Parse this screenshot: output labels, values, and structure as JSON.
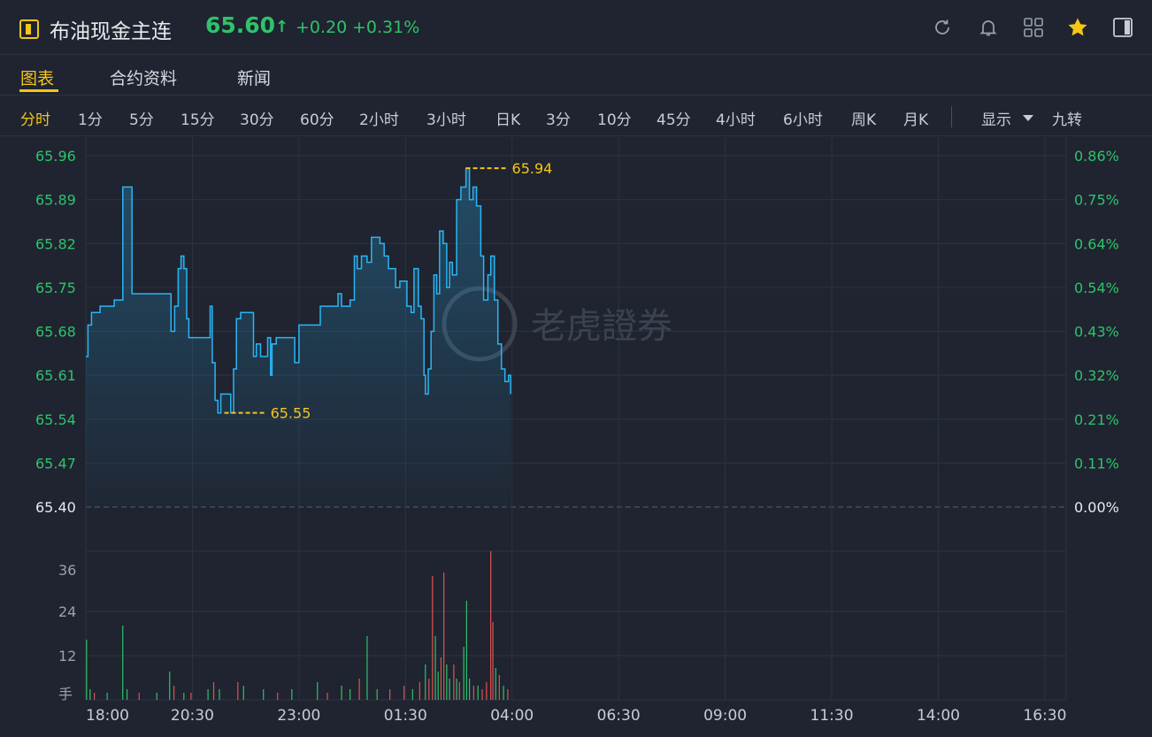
{
  "header": {
    "title": "布油现金主连",
    "price": "65.60",
    "arrow": "↑",
    "change": "+0.20",
    "change_pct": "+0.31%",
    "icons": [
      "refresh-icon",
      "bell-icon",
      "grid-icon",
      "star-icon",
      "sidebar-toggle-icon"
    ],
    "colors": {
      "up": "#2fc26b",
      "accent": "#f5c518",
      "line": "#29b6f6",
      "down": "#e05353"
    }
  },
  "tabs": [
    "图表",
    "合约资料",
    "新闻"
  ],
  "periods": [
    "分时",
    "1分",
    "5分",
    "15分",
    "30分",
    "60分",
    "2小时",
    "3小时",
    "日K",
    "3分",
    "10分",
    "45分",
    "4小时",
    "6小时",
    "周K",
    "月K"
  ],
  "display_menu": "显示",
  "rights_button": "九转",
  "watermark": "老虎證券",
  "chart_data": {
    "type": "line",
    "price_axis": [
      "65.96",
      "65.89",
      "65.82",
      "65.75",
      "65.68",
      "65.61",
      "65.54",
      "65.47",
      "65.40"
    ],
    "pct_axis": [
      "0.86%",
      "0.75%",
      "0.64%",
      "0.54%",
      "0.43%",
      "0.32%",
      "0.21%",
      "0.11%",
      "0.00%"
    ],
    "ylim": [
      65.4,
      65.96
    ],
    "base_price": 65.4,
    "x_ticks": [
      "18:00",
      "20:30",
      "23:00",
      "01:30",
      "04:00",
      "06:30",
      "09:00",
      "11:30",
      "14:00",
      "16:30"
    ],
    "x_minutes_range": [
      0,
      1380
    ],
    "high": {
      "label": "65.94",
      "value": 65.94,
      "minute": 535
    },
    "low": {
      "label": "65.55",
      "value": 65.55,
      "minute": 195
    },
    "price_points": [
      [
        0,
        65.64
      ],
      [
        3,
        65.69
      ],
      [
        8,
        65.71
      ],
      [
        20,
        65.72
      ],
      [
        40,
        65.73
      ],
      [
        50,
        65.73
      ],
      [
        52,
        65.91
      ],
      [
        62,
        65.91
      ],
      [
        65,
        65.74
      ],
      [
        75,
        65.74
      ],
      [
        100,
        65.74
      ],
      [
        118,
        65.74
      ],
      [
        120,
        65.68
      ],
      [
        125,
        65.72
      ],
      [
        130,
        65.78
      ],
      [
        134,
        65.8
      ],
      [
        138,
        65.78
      ],
      [
        142,
        65.7
      ],
      [
        145,
        65.67
      ],
      [
        170,
        65.67
      ],
      [
        175,
        65.72
      ],
      [
        178,
        65.63
      ],
      [
        182,
        65.57
      ],
      [
        186,
        65.55
      ],
      [
        190,
        65.58
      ],
      [
        196,
        65.58
      ],
      [
        204,
        65.55
      ],
      [
        208,
        65.62
      ],
      [
        212,
        65.7
      ],
      [
        218,
        65.71
      ],
      [
        232,
        65.71
      ],
      [
        236,
        65.64
      ],
      [
        240,
        65.66
      ],
      [
        246,
        65.64
      ],
      [
        252,
        65.64
      ],
      [
        256,
        65.67
      ],
      [
        260,
        65.61
      ],
      [
        262,
        65.66
      ],
      [
        268,
        65.67
      ],
      [
        290,
        65.67
      ],
      [
        294,
        65.63
      ],
      [
        300,
        65.69
      ],
      [
        320,
        65.69
      ],
      [
        330,
        65.72
      ],
      [
        350,
        65.72
      ],
      [
        355,
        65.74
      ],
      [
        360,
        65.72
      ],
      [
        372,
        65.73
      ],
      [
        378,
        65.8
      ],
      [
        382,
        65.78
      ],
      [
        388,
        65.8
      ],
      [
        396,
        65.79
      ],
      [
        402,
        65.83
      ],
      [
        414,
        65.82
      ],
      [
        420,
        65.8
      ],
      [
        426,
        65.78
      ],
      [
        430,
        65.78
      ],
      [
        436,
        65.75
      ],
      [
        442,
        65.76
      ],
      [
        452,
        65.72
      ],
      [
        458,
        65.71
      ],
      [
        462,
        65.78
      ],
      [
        468,
        65.72
      ],
      [
        472,
        65.7
      ],
      [
        476,
        65.61
      ],
      [
        478,
        65.58
      ],
      [
        482,
        65.62
      ],
      [
        486,
        65.68
      ],
      [
        490,
        65.77
      ],
      [
        494,
        65.74
      ],
      [
        498,
        65.84
      ],
      [
        503,
        65.82
      ],
      [
        508,
        65.75
      ],
      [
        512,
        65.79
      ],
      [
        516,
        65.77
      ],
      [
        522,
        65.89
      ],
      [
        528,
        65.91
      ],
      [
        535,
        65.94
      ],
      [
        540,
        65.89
      ],
      [
        545,
        65.91
      ],
      [
        550,
        65.88
      ],
      [
        556,
        65.8
      ],
      [
        560,
        65.73
      ],
      [
        566,
        65.77
      ],
      [
        570,
        65.8
      ],
      [
        575,
        65.73
      ],
      [
        580,
        65.66
      ],
      [
        585,
        65.62
      ],
      [
        590,
        65.6
      ],
      [
        595,
        65.61
      ],
      [
        598,
        65.58
      ]
    ],
    "volume_axis": [
      "36",
      "24",
      "12",
      "手"
    ],
    "volume_max": 42,
    "volume_bars": [
      [
        1,
        17,
        "up"
      ],
      [
        6,
        3,
        "up"
      ],
      [
        12,
        2,
        "down"
      ],
      [
        30,
        2,
        "up"
      ],
      [
        52,
        21,
        "up"
      ],
      [
        58,
        3,
        "up"
      ],
      [
        75,
        2,
        "down"
      ],
      [
        100,
        2,
        "up"
      ],
      [
        118,
        8,
        "up"
      ],
      [
        124,
        4,
        "down"
      ],
      [
        138,
        2,
        "up"
      ],
      [
        148,
        2,
        "down"
      ],
      [
        172,
        3,
        "up"
      ],
      [
        180,
        5,
        "down"
      ],
      [
        188,
        3,
        "up"
      ],
      [
        214,
        5,
        "down"
      ],
      [
        222,
        4,
        "up"
      ],
      [
        250,
        3,
        "up"
      ],
      [
        270,
        2,
        "down"
      ],
      [
        290,
        3,
        "up"
      ],
      [
        326,
        5,
        "up"
      ],
      [
        340,
        2,
        "down"
      ],
      [
        360,
        4,
        "up"
      ],
      [
        372,
        3,
        "up"
      ],
      [
        385,
        6,
        "down"
      ],
      [
        396,
        18,
        "up"
      ],
      [
        410,
        3,
        "up"
      ],
      [
        428,
        3,
        "down"
      ],
      [
        448,
        4,
        "down"
      ],
      [
        460,
        3,
        "up"
      ],
      [
        470,
        5,
        "down"
      ],
      [
        478,
        10,
        "up"
      ],
      [
        483,
        6,
        "down"
      ],
      [
        488,
        35,
        "down"
      ],
      [
        492,
        18,
        "up"
      ],
      [
        496,
        8,
        "up"
      ],
      [
        500,
        12,
        "down"
      ],
      [
        504,
        36,
        "down"
      ],
      [
        508,
        10,
        "up"
      ],
      [
        512,
        6,
        "up"
      ],
      [
        518,
        10,
        "down"
      ],
      [
        522,
        6,
        "up"
      ],
      [
        526,
        5,
        "down"
      ],
      [
        532,
        15,
        "up"
      ],
      [
        536,
        28,
        "up"
      ],
      [
        540,
        6,
        "up"
      ],
      [
        546,
        4,
        "down"
      ],
      [
        552,
        4,
        "up"
      ],
      [
        558,
        3,
        "down"
      ],
      [
        564,
        5,
        "down"
      ],
      [
        570,
        42,
        "down"
      ],
      [
        573,
        22,
        "down"
      ],
      [
        577,
        9,
        "up"
      ],
      [
        582,
        7,
        "down"
      ],
      [
        588,
        4,
        "up"
      ],
      [
        594,
        3,
        "down"
      ]
    ]
  }
}
